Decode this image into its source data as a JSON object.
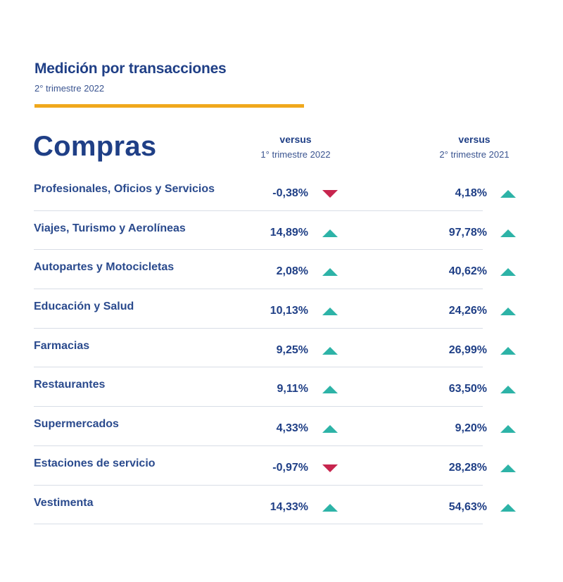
{
  "header": {
    "title": "Medición por transacciones",
    "subtitle": "2° trimestre 2022"
  },
  "section": {
    "title": "Compras",
    "columns": [
      {
        "line1": "versus",
        "line2": "1° trimestre 2022"
      },
      {
        "line1": "versus",
        "line2": "2° trimestre 2021"
      }
    ]
  },
  "colors": {
    "accent_rule": "#f0a81c",
    "up": "#2db3a7",
    "down": "#c7254e",
    "text": "#1f3f86"
  },
  "rows": [
    {
      "label": "Profesionales, Oficios y Servicios",
      "v1": "-0,38%",
      "d1": "down",
      "v2": "4,18%",
      "d2": "up"
    },
    {
      "label": "Viajes, Turismo y Aerolíneas",
      "v1": "14,89%",
      "d1": "up",
      "v2": "97,78%",
      "d2": "up"
    },
    {
      "label": "Autopartes y Motocicletas",
      "v1": "2,08%",
      "d1": "up",
      "v2": "40,62%",
      "d2": "up"
    },
    {
      "label": "Educación y Salud",
      "v1": "10,13%",
      "d1": "up",
      "v2": "24,26%",
      "d2": "up"
    },
    {
      "label": "Farmacias",
      "v1": "9,25%",
      "d1": "up",
      "v2": "26,99%",
      "d2": "up"
    },
    {
      "label": "Restaurantes",
      "v1": "9,11%",
      "d1": "up",
      "v2": "63,50%",
      "d2": "up"
    },
    {
      "label": "Supermercados",
      "v1": "4,33%",
      "d1": "up",
      "v2": "9,20%",
      "d2": "up"
    },
    {
      "label": "Estaciones de servicio",
      "v1": "-0,97%",
      "d1": "down",
      "v2": "28,28%",
      "d2": "up"
    },
    {
      "label": "Vestimenta",
      "v1": "14,33%",
      "d1": "up",
      "v2": "54,63%",
      "d2": "up"
    }
  ]
}
